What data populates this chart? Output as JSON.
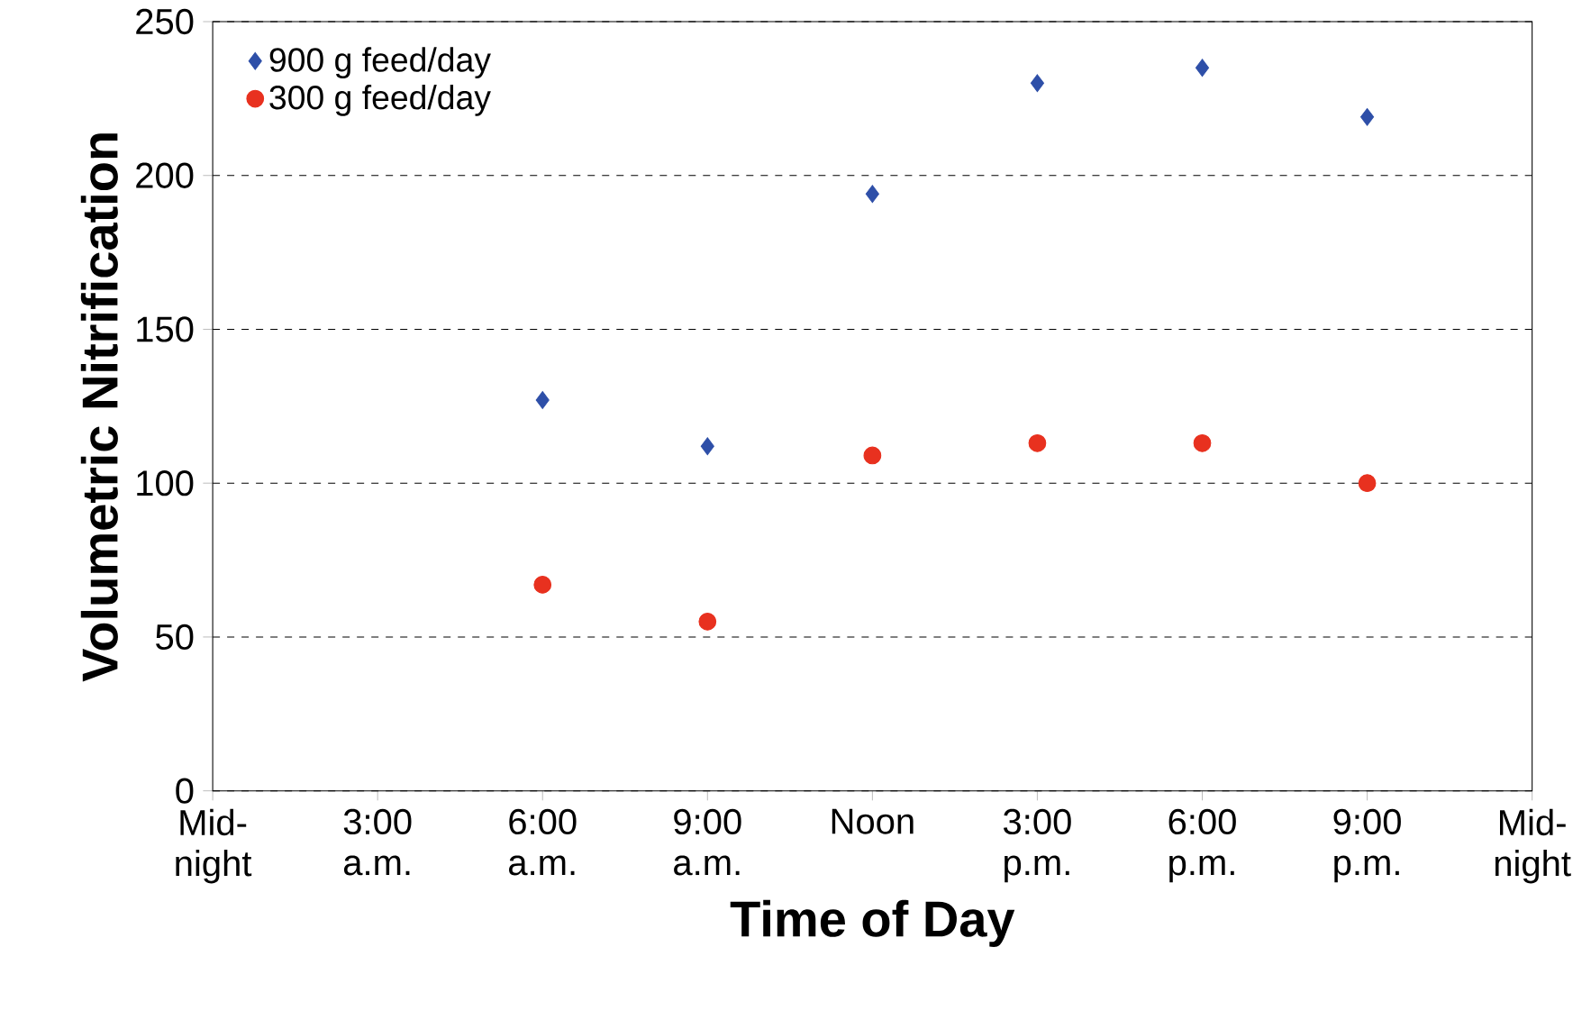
{
  "chart_data": {
    "type": "scatter",
    "xlabel": "Time of Day",
    "ylabel": "Volumetric Nitrification",
    "categories": [
      "Mid-night",
      "3:00 a.m.",
      "6:00 a.m.",
      "9:00 a.m.",
      "Noon",
      "3:00 p.m.",
      "6:00 p.m.",
      "9:00 p.m.",
      "Mid-night"
    ],
    "series": [
      {
        "name": "900 g feed/day",
        "color": "#2e4fa8",
        "marker": "diamond",
        "values": [
          null,
          null,
          127,
          112,
          194,
          230,
          235,
          219,
          null
        ]
      },
      {
        "name": "300 g feed/day",
        "color": "#e8311f",
        "marker": "circle",
        "values": [
          null,
          null,
          67,
          55,
          109,
          113,
          113,
          100,
          null
        ]
      }
    ],
    "ylim": [
      0,
      250
    ],
    "yticks": [
      0,
      50,
      100,
      150,
      200,
      250
    ],
    "grid": "y",
    "legend": "top left"
  }
}
